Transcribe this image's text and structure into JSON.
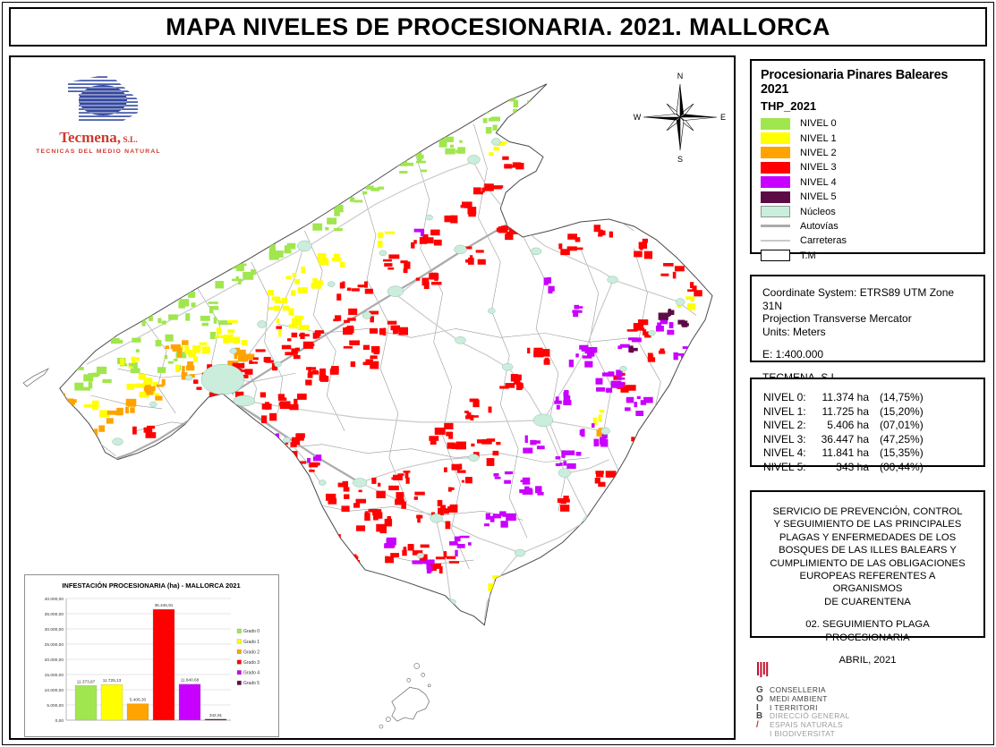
{
  "title": "MAPA NIVELES DE PROCESIONARIA. 2021. MALLORCA",
  "tecmena": {
    "name": "Tecmena,",
    "suffix": " S.L.",
    "tagline": "TECNICAS DEL MEDIO NATURAL"
  },
  "compass": {
    "north": "N",
    "south": "S",
    "east": "E",
    "west": "W"
  },
  "legend": {
    "title": "Procesionaria Pinares Baleares 2021",
    "subtitle": "THP_2021",
    "items": [
      {
        "label": "NIVEL 0",
        "swatch": "fill",
        "color": "#A0E64E"
      },
      {
        "label": "NIVEL 1",
        "swatch": "fill",
        "color": "#FFFF00"
      },
      {
        "label": "NIVEL 2",
        "swatch": "fill",
        "color": "#FFA300"
      },
      {
        "label": "NIVEL 3",
        "swatch": "fill",
        "color": "#FF0000"
      },
      {
        "label": "NIVEL 4",
        "swatch": "fill",
        "color": "#C800FF"
      },
      {
        "label": "NIVEL 5",
        "swatch": "fill",
        "color": "#5C0B45"
      },
      {
        "label": "Núcleos",
        "swatch": "fill-border",
        "color": "#CBEDDC"
      },
      {
        "label": "Autovías",
        "swatch": "line",
        "color": "#ABABAB"
      },
      {
        "label": "Carreteras",
        "swatch": "line-thin",
        "color": "#C9C9C9"
      },
      {
        "label": "T.M",
        "swatch": "box",
        "color": "#FFFFFF"
      }
    ]
  },
  "info_box": {
    "lines": [
      "Coordinate System: ETRS89 UTM Zone 31N",
      "Projection Transverse Mercator",
      "Units: Meters",
      "",
      "E: 1:400.000",
      "",
      "TECMENA, S.L"
    ]
  },
  "stats_box": {
    "rows": [
      {
        "label": "NIVEL 0:",
        "value": "11.374 ha",
        "pct": "(14,75%)"
      },
      {
        "label": "NIVEL 1:",
        "value": "11.725 ha",
        "pct": "(15,20%)"
      },
      {
        "label": "NIVEL 2:",
        "value": "5.406 ha",
        "pct": "(07,01%)"
      },
      {
        "label": "NIVEL 3:",
        "value": "36.447 ha",
        "pct": "(47,25%)"
      },
      {
        "label": "NIVEL 4:",
        "value": "11.841 ha",
        "pct": "(15,35%)"
      },
      {
        "label": "NIVEL 5:",
        "value": "343 ha",
        "pct": "(00,44%)"
      }
    ]
  },
  "service_box": {
    "lines": [
      "SERVICIO DE PREVENCIÓN, CONTROL",
      "Y SEGUIMIENTO DE LAS PRINCIPALES",
      "PLAGAS Y ENFERMEDADES DE LOS",
      "BOSQUES DE LAS ILLES BALEARS Y",
      "CUMPLIMIENTO DE LAS OBLIGACIONES",
      "EUROPEAS REFERENTES A ORGANISMOS",
      "DE CUARENTENA",
      "",
      "02. SEGUIMIENTO PLAGA PROCESIONARIA",
      "",
      "ABRIL, 2021"
    ]
  },
  "goib": {
    "rows": [
      {
        "letter": "G",
        "text": "CONSELLERIA",
        "tone": "dark"
      },
      {
        "letter": "O",
        "text": "MEDI AMBIENT",
        "tone": "dark"
      },
      {
        "letter": "I",
        "text": "I TERRITORI",
        "tone": "dark"
      },
      {
        "letter": "B",
        "text": "DIRECCIÓ GENERAL",
        "tone": "gray"
      },
      {
        "letter": "/",
        "text": "ESPAIS NATURALS",
        "tone": "gray"
      },
      {
        "letter": "",
        "text": "I BIODIVERSITAT",
        "tone": "gray"
      }
    ]
  },
  "chart_data": {
    "type": "bar",
    "title": "INFESTACIÓN PROCESIONARIA (ha) - MALLORCA 2021",
    "categories": [
      "Grado 0",
      "Grado 1",
      "Grado 2",
      "Grado 3",
      "Grado 4",
      "Grado 5"
    ],
    "values": [
      11373.87,
      11725.13,
      5406.3,
      36446.91,
      11840.68,
      342.91
    ],
    "value_labels": [
      "11.373,87",
      "11.725,13",
      "5.406,30",
      "36.446,91",
      "11.840,68",
      "342,91"
    ],
    "colors": [
      "#A0E64E",
      "#FFFF00",
      "#FFA300",
      "#FF0000",
      "#C800FF",
      "#5C0B45"
    ],
    "xlabel": "",
    "ylabel": "",
    "ylim": [
      0,
      40000
    ],
    "ytick_step": 5000,
    "ytick_labels": [
      "0,00",
      "5.000,00",
      "10.000,00",
      "15.000,00",
      "20.000,00",
      "25.000,00",
      "30.000,00",
      "35.000,00",
      "40.000,00"
    ],
    "legend_position": "right",
    "grid": true
  },
  "map_colors": {
    "levels": [
      "#A0E64E",
      "#FFFF00",
      "#FFA300",
      "#FF0000",
      "#C800FF",
      "#5C0B45"
    ],
    "nucleos": "#CBEDDC",
    "autovia": "#ABABAB",
    "carretera": "#C9C9C9",
    "boundary": "#9A9A9A",
    "coast": "#4A4A4A"
  }
}
